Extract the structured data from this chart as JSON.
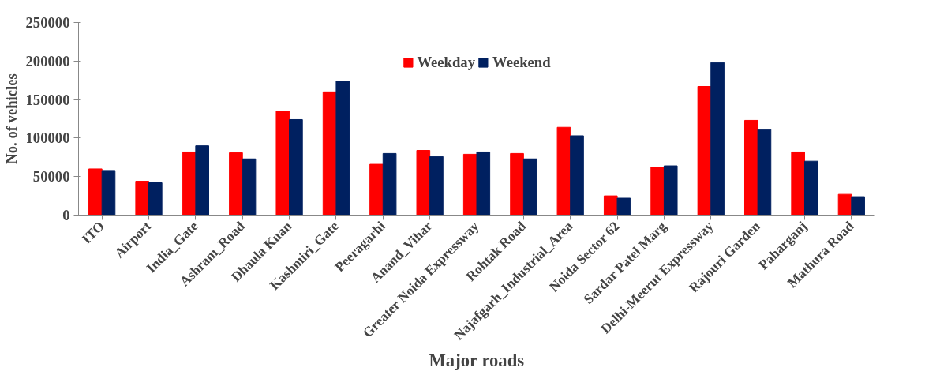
{
  "chart_data": {
    "type": "bar",
    "xlabel": "Major roads",
    "ylabel": "No. of vehicles",
    "categories": [
      "ITO",
      "Airport",
      "India_Gate",
      "Ashram_Road",
      "Dhaula Kuan",
      "Kashmiri_Gate",
      "Peeragarhi",
      "Anand_Vihar",
      "Greater Noida Expressway",
      "Rohtak Road",
      "Najafgarh_Industrial_Area",
      "Noida Sector 62",
      "Sardar Patel Marg",
      "Delhi-Meerut Expressway",
      "Rajouri Garden",
      "Paharganj",
      "Mathura Road"
    ],
    "series": [
      {
        "name": "Weekday",
        "color": "#ff0000",
        "values": [
          60000,
          44000,
          82000,
          81000,
          135000,
          160000,
          66000,
          84000,
          79000,
          80000,
          114000,
          25000,
          62000,
          167000,
          123000,
          82000,
          27000
        ]
      },
      {
        "name": "Weekend",
        "color": "#002060",
        "values": [
          58000,
          42000,
          90000,
          73000,
          124000,
          174000,
          80000,
          76000,
          82000,
          73000,
          103000,
          22000,
          64000,
          198000,
          111000,
          70000,
          24000
        ]
      }
    ],
    "ylim": [
      0,
      250000
    ],
    "yticks": [
      0,
      50000,
      100000,
      150000,
      200000,
      250000
    ],
    "grid": false,
    "legend": "top"
  }
}
